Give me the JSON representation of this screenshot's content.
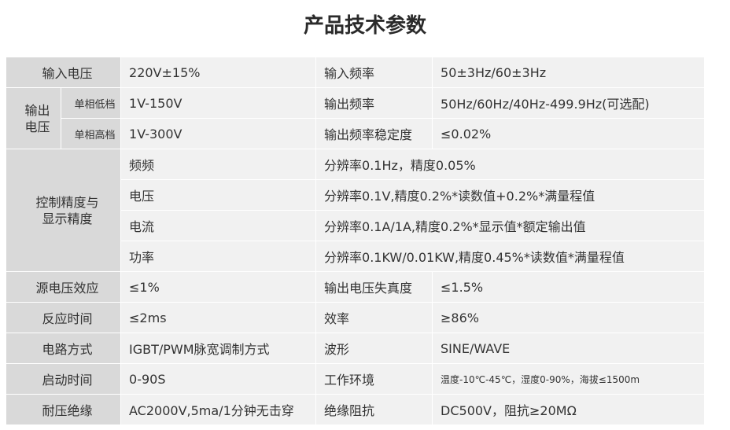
{
  "title": "产品技术参数",
  "rows": {
    "r1": {
      "l1": "输入电压",
      "v1": "220V±15%",
      "l2": "输入频率",
      "v2": "50±3Hz/60±3Hz"
    },
    "r2": {
      "group": "输出\n电压",
      "sub1": "单相低档",
      "sub1_val": "1V-150V",
      "l2": "输出频率",
      "v2": "50Hz/60Hz/40Hz-499.9Hz(可选配)"
    },
    "r3": {
      "sub2": "单相高档",
      "sub2_val": "1V-300V",
      "l2": "输出频率稳定度",
      "v2": "≤0.02%"
    },
    "precision": {
      "group": "控制精度与\n显示精度",
      "items": [
        {
          "name": "频频",
          "value": "分辨率0.1Hz，精度0.05%"
        },
        {
          "name": "电压",
          "value": "分辨率0.1V,精度0.2%*读数值+0.2%*满量程值"
        },
        {
          "name": "电流",
          "value": "分辨率0.1A/1A,精度0.2%*显示值*额定输出值"
        },
        {
          "name": "功率",
          "value": "分辨率0.1KW/0.01KW,精度0.45%*读数值*满量程值"
        }
      ]
    },
    "r8": {
      "l1": "源电压效应",
      "v1": "≤1%",
      "l2": "输出电压失真度",
      "v2": "≤1.5%"
    },
    "r9": {
      "l1": "反应时间",
      "v1": "≤2ms",
      "l2": "效率",
      "v2": "≥86%"
    },
    "r10": {
      "l1": "电路方式",
      "v1": "IGBT/PWM脉宽调制方式",
      "l2": "波形",
      "v2": "SINE/WAVE"
    },
    "r11": {
      "l1": "启动时间",
      "v1": "0-90S",
      "l2": "工作环境",
      "v2": "温度-10℃-45℃，湿度0-90%，海拔≤1500m"
    },
    "r12": {
      "l1": "耐压绝缘",
      "v1": "AC2000V,5ma/1分钟无击穿",
      "l2": "绝缘阻抗",
      "v2": "DC500V，阻抗≥20MΩ"
    }
  }
}
